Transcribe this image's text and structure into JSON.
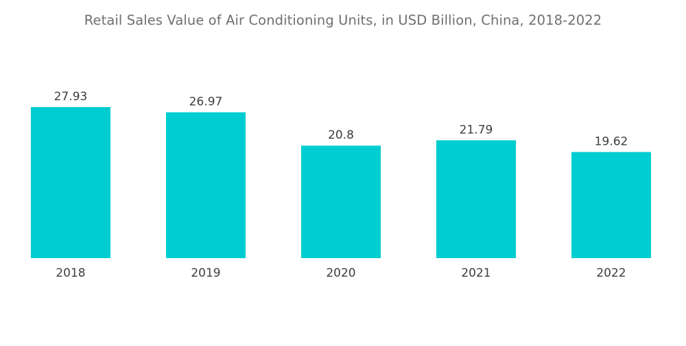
{
  "chart_data": {
    "type": "bar",
    "title": "Retail Sales Value of Air Conditioning Units, in USD Billion, China, 2018-2022",
    "categories": [
      "2018",
      "2019",
      "2020",
      "2021",
      "2022"
    ],
    "values": [
      27.93,
      26.97,
      20.8,
      21.79,
      19.62
    ],
    "value_labels": [
      "27.93",
      "26.97",
      "20.8",
      "21.79",
      "19.62"
    ],
    "xlabel": "",
    "ylabel": "",
    "ylim": [
      0,
      27.93
    ],
    "grid": false,
    "legend": "none",
    "bar_color": "#00cdd1"
  }
}
